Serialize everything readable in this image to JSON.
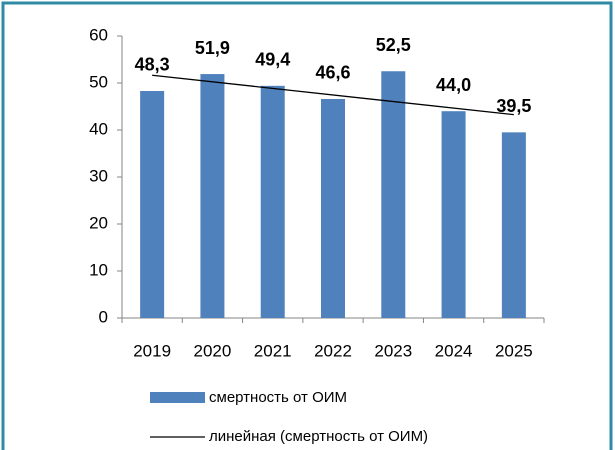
{
  "chart_data": {
    "type": "bar",
    "categories": [
      "2019",
      "2020",
      "2021",
      "2022",
      "2023",
      "2024",
      "2025"
    ],
    "series": [
      {
        "name": "смертность от ОИМ",
        "color": "#4f81bd",
        "values": [
          48.3,
          51.9,
          49.4,
          46.6,
          52.5,
          44.0,
          39.5
        ],
        "value_labels": [
          "48,3",
          "51,9",
          "49,4",
          "46,6",
          "52,5",
          "44,0",
          "39,5"
        ]
      }
    ],
    "trendline": {
      "name": "линейная (смертность от ОИМ)",
      "color": "#000000",
      "kind": "linear"
    },
    "ylim": [
      0,
      60
    ],
    "yticks": [
      0,
      10,
      20,
      30,
      40,
      50,
      60
    ],
    "grid": false,
    "legend": "bottom"
  }
}
